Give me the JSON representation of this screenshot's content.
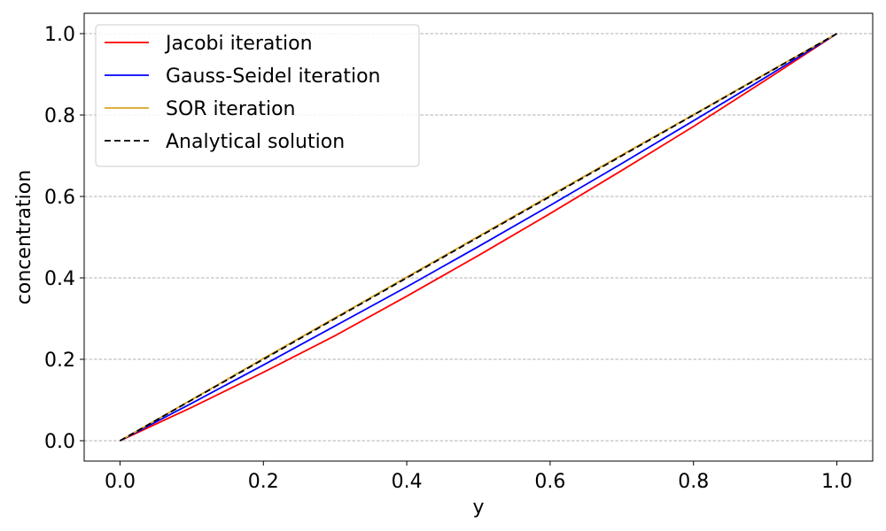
{
  "chart_data": {
    "type": "line",
    "title": "",
    "xlabel": "y",
    "ylabel": "concentration",
    "xlim": [
      -0.05,
      1.05
    ],
    "ylim": [
      -0.05,
      1.05
    ],
    "x_ticks": [
      "0.0",
      "0.2",
      "0.4",
      "0.6",
      "0.8",
      "1.0"
    ],
    "y_ticks": [
      "0.0",
      "0.2",
      "0.4",
      "0.6",
      "0.8",
      "1.0"
    ],
    "grid": "horizontal dashed",
    "legend_position": "top-left",
    "series": [
      {
        "name": "Jacobi iteration",
        "color": "#ff0000",
        "style": "solid",
        "x": [
          0.0,
          0.1,
          0.2,
          0.3,
          0.4,
          0.5,
          0.6,
          0.7,
          0.8,
          0.9,
          1.0
        ],
        "y": [
          0.0,
          0.082,
          0.168,
          0.258,
          0.355,
          0.455,
          0.558,
          0.664,
          0.772,
          0.885,
          1.0
        ]
      },
      {
        "name": "Gauss-Seidel iteration",
        "color": "#0000ff",
        "style": "solid",
        "x": [
          0.0,
          0.1,
          0.2,
          0.3,
          0.4,
          0.5,
          0.6,
          0.7,
          0.8,
          0.9,
          1.0
        ],
        "y": [
          0.0,
          0.092,
          0.186,
          0.282,
          0.378,
          0.477,
          0.578,
          0.681,
          0.786,
          0.892,
          1.0
        ]
      },
      {
        "name": "SOR iteration",
        "color": "#daa520",
        "style": "solid",
        "x": [
          0.0,
          0.1,
          0.2,
          0.3,
          0.4,
          0.5,
          0.6,
          0.7,
          0.8,
          0.9,
          1.0
        ],
        "y": [
          0.0,
          0.101,
          0.202,
          0.302,
          0.402,
          0.502,
          0.602,
          0.702,
          0.801,
          0.901,
          1.0
        ]
      },
      {
        "name": "Analytical solution",
        "color": "#000000",
        "style": "dashed",
        "x": [
          0.0,
          0.1,
          0.2,
          0.3,
          0.4,
          0.5,
          0.6,
          0.7,
          0.8,
          0.9,
          1.0
        ],
        "y": [
          0.0,
          0.1,
          0.2,
          0.3,
          0.4,
          0.5,
          0.6,
          0.7,
          0.8,
          0.9,
          1.0
        ]
      }
    ]
  }
}
